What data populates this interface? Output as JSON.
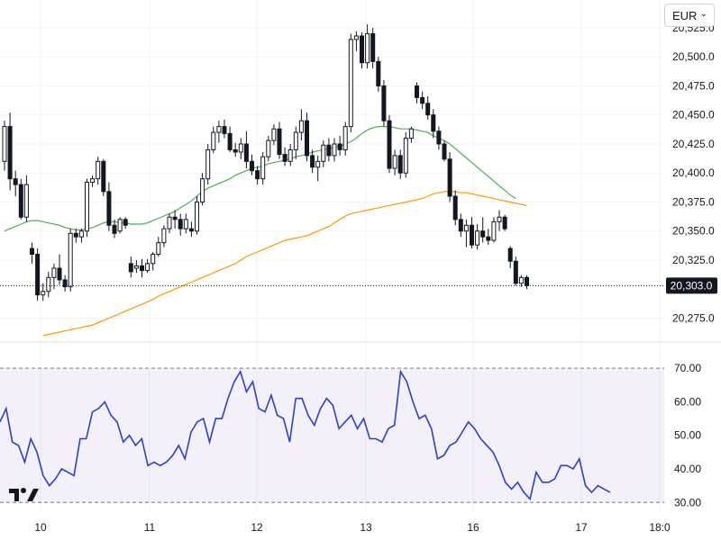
{
  "currency": {
    "selected": "EUR",
    "chevron": "chevron-down-icon"
  },
  "logo": {
    "icon": "tradingview-logo-icon"
  },
  "chart_data": {
    "type": "candlestick",
    "price_axis": {
      "ticks": [
        20525.0,
        20500.0,
        20475.0,
        20450.0,
        20425.0,
        20400.0,
        20375.0,
        20350.0,
        20325.0,
        20275.0
      ],
      "tick_labels": [
        "20,525.0",
        "20,500.0",
        "20,475.0",
        "20,450.0",
        "20,425.0",
        "20,400.0",
        "20,375.0",
        "20,350.0",
        "20,325.0",
        "20,275.0"
      ],
      "range": [
        20256,
        20549
      ]
    },
    "last_price": {
      "value": 20303.0,
      "label": "20,303.0",
      "color": "#131722"
    },
    "time_axis": {
      "labels": [
        "10",
        "11",
        "12",
        "13",
        "16",
        "17",
        "18:0"
      ]
    },
    "candles_ohlc": [
      [
        20410,
        20445,
        20402,
        20440
      ],
      [
        20440,
        20452,
        20385,
        20395
      ],
      [
        20395,
        20402,
        20380,
        20390
      ],
      [
        20390,
        20395,
        20360,
        20362
      ],
      [
        20362,
        20398,
        20358,
        20390
      ],
      [
        20335,
        20340,
        20322,
        20330
      ],
      [
        20330,
        20335,
        20290,
        20295
      ],
      [
        20295,
        20305,
        20290,
        20298
      ],
      [
        20298,
        20315,
        20293,
        20310
      ],
      [
        20310,
        20322,
        20300,
        20318
      ],
      [
        20318,
        20330,
        20304,
        20308
      ],
      [
        20308,
        20312,
        20298,
        20302
      ],
      [
        20302,
        20352,
        20298,
        20348
      ],
      [
        20348,
        20352,
        20340,
        20345
      ],
      [
        20345,
        20352,
        20340,
        20350
      ],
      [
        20350,
        20395,
        20345,
        20392
      ],
      [
        20392,
        20398,
        20388,
        20395
      ],
      [
        20395,
        20414,
        20390,
        20410
      ],
      [
        20410,
        20412,
        20380,
        20384
      ],
      [
        20384,
        20392,
        20350,
        20355
      ],
      [
        20355,
        20360,
        20344,
        20348
      ],
      [
        20350,
        20362,
        20348,
        20360
      ],
      [
        20360,
        20362,
        20352,
        20355
      ],
      [
        20322,
        20328,
        20310,
        20315
      ],
      [
        20318,
        20325,
        20314,
        20320
      ],
      [
        20320,
        20326,
        20310,
        20316
      ],
      [
        20316,
        20326,
        20314,
        20322
      ],
      [
        20322,
        20332,
        20316,
        20330
      ],
      [
        20330,
        20345,
        20328,
        20340
      ],
      [
        20340,
        20355,
        20336,
        20352
      ],
      [
        20352,
        20365,
        20348,
        20362
      ],
      [
        20362,
        20368,
        20352,
        20360
      ],
      [
        20360,
        20365,
        20346,
        20352
      ],
      [
        20352,
        20365,
        20348,
        20360
      ],
      [
        20352,
        20358,
        20345,
        20350
      ],
      [
        20350,
        20380,
        20347,
        20375
      ],
      [
        20375,
        20400,
        20372,
        20395
      ],
      [
        20395,
        20425,
        20390,
        20420
      ],
      [
        20420,
        20440,
        20417,
        20435
      ],
      [
        20435,
        20445,
        20426,
        20440
      ],
      [
        20440,
        20446,
        20430,
        20434
      ],
      [
        20434,
        20440,
        20418,
        20420
      ],
      [
        20420,
        20426,
        20414,
        20418
      ],
      [
        20418,
        20430,
        20412,
        20425
      ],
      [
        20425,
        20436,
        20404,
        20410
      ],
      [
        20410,
        20416,
        20398,
        20402
      ],
      [
        20402,
        20406,
        20390,
        20395
      ],
      [
        20395,
        20418,
        20390,
        20414
      ],
      [
        20414,
        20432,
        20410,
        20428
      ],
      [
        20428,
        20442,
        20424,
        20438
      ],
      [
        20438,
        20444,
        20412,
        20416
      ],
      [
        20416,
        20422,
        20406,
        20410
      ],
      [
        20410,
        20425,
        20406,
        20420
      ],
      [
        20420,
        20440,
        20412,
        20435
      ],
      [
        20435,
        20455,
        20428,
        20445
      ],
      [
        20445,
        20452,
        20410,
        20415
      ],
      [
        20415,
        20420,
        20400,
        20405
      ],
      [
        20405,
        20415,
        20393,
        20410
      ],
      [
        20410,
        20428,
        20405,
        20424
      ],
      [
        20424,
        20430,
        20410,
        20415
      ],
      [
        20415,
        20430,
        20410,
        20425
      ],
      [
        20425,
        20432,
        20415,
        20420
      ],
      [
        20420,
        20444,
        20415,
        20440
      ],
      [
        20440,
        20520,
        20435,
        20515
      ],
      [
        20515,
        20522,
        20505,
        20518
      ],
      [
        20518,
        20521,
        20490,
        20495
      ],
      [
        20495,
        20528,
        20490,
        20520
      ],
      [
        20520,
        20525,
        20490,
        20496
      ],
      [
        20496,
        20500,
        20470,
        20475
      ],
      [
        20475,
        20480,
        20440,
        20445
      ],
      [
        20445,
        20450,
        20400,
        20404
      ],
      [
        20404,
        20420,
        20398,
        20415
      ],
      [
        20415,
        20420,
        20395,
        20400
      ],
      [
        20400,
        20435,
        20396,
        20430
      ],
      [
        20430,
        20440,
        20426,
        20438
      ],
      [
        20475,
        20478,
        20460,
        20465
      ],
      [
        20465,
        20470,
        20455,
        20460
      ],
      [
        20460,
        20466,
        20446,
        20450
      ],
      [
        20450,
        20455,
        20430,
        20436
      ],
      [
        20436,
        20440,
        20420,
        20425
      ],
      [
        20425,
        20428,
        20410,
        20412
      ],
      [
        20412,
        20418,
        20375,
        20380
      ],
      [
        20380,
        20385,
        20355,
        20360
      ],
      [
        20360,
        20365,
        20345,
        20350
      ],
      [
        20350,
        20360,
        20336,
        20355
      ],
      [
        20355,
        20362,
        20335,
        20338
      ],
      [
        20338,
        20356,
        20334,
        20350
      ],
      [
        20350,
        20362,
        20340,
        20345
      ],
      [
        20345,
        20352,
        20338,
        20342
      ],
      [
        20342,
        20362,
        20340,
        20358
      ],
      [
        20358,
        20368,
        20350,
        20362
      ],
      [
        20362,
        20364,
        20350,
        20352
      ],
      [
        20335,
        20337,
        20318,
        20324
      ],
      [
        20324,
        20328,
        20303,
        20305
      ],
      [
        20305,
        20312,
        20302,
        20310
      ],
      [
        20310,
        20312,
        20300,
        20303
      ]
    ],
    "indicators": [
      {
        "name": "",
        "color": "#4caf50",
        "values": [
          20350,
          20352,
          20354,
          20356,
          20358,
          20359,
          20359,
          20358,
          20357,
          20356,
          20355,
          20353,
          20352,
          20351,
          20351,
          20352,
          20353,
          20355,
          20357,
          20358,
          20358,
          20357,
          20357,
          20356,
          20356,
          20356,
          20357,
          20359,
          20361,
          20363,
          20365,
          20367,
          20370,
          20373,
          20376,
          20380,
          20384,
          20387,
          20389,
          20391,
          20393,
          20395,
          20398,
          20400,
          20402,
          20404,
          20405,
          20406,
          20408,
          20409,
          20410,
          20411,
          20412,
          20414,
          20415,
          20416,
          20418,
          20419,
          20420,
          20421,
          20422,
          20423,
          20425,
          20427,
          20430,
          20434,
          20437,
          20439,
          20440,
          20440,
          20440,
          20439,
          20438,
          20438,
          20438,
          20437,
          20436,
          20435,
          20432,
          20430,
          20428,
          20425,
          20421,
          20417,
          20413,
          20409,
          20405,
          20401,
          20397,
          20393,
          20389,
          20385,
          20381,
          20378
        ]
      },
      {
        "name": "",
        "color": "#ff9800",
        "values": [
          20260,
          20261,
          20262,
          20263,
          20264,
          20265,
          20266,
          20267,
          20268,
          20269,
          20271,
          20273,
          20275,
          20277,
          20279,
          20281,
          20283,
          20285,
          20287,
          20289,
          20291,
          20294,
          20296,
          20298,
          20300,
          20302,
          20304,
          20306,
          20308,
          20310,
          20312,
          20314,
          20316,
          20318,
          20320,
          20322,
          20325,
          20328,
          20330,
          20332,
          20334,
          20336,
          20338,
          20340,
          20342,
          20343,
          20344,
          20345,
          20346,
          20348,
          20350,
          20352,
          20354,
          20357,
          20360,
          20363,
          20365,
          20366,
          20367,
          20368,
          20369,
          20370,
          20371,
          20372,
          20373,
          20374,
          20375,
          20376,
          20377,
          20378,
          20380,
          20382,
          20383,
          20384,
          20384,
          20384,
          20383,
          20383,
          20382,
          20381,
          20380,
          20379,
          20378,
          20377,
          20376,
          20375,
          20374,
          20373,
          20372
        ]
      }
    ],
    "rsi": {
      "axis_ticks": [
        70.0,
        60.0,
        50.0,
        40.0,
        30.0
      ],
      "tick_labels": [
        "70.00",
        "60.00",
        "50.00",
        "40.00",
        "30.00"
      ],
      "range": [
        29,
        73
      ],
      "band": [
        30,
        70
      ],
      "color": "#2942c9",
      "values": [
        54,
        58,
        48,
        47,
        42,
        49,
        45,
        38,
        35,
        37,
        40,
        39,
        38,
        49,
        49,
        57,
        58,
        60,
        56,
        54,
        48,
        50,
        47,
        49,
        41,
        42,
        41,
        42,
        44,
        47,
        43,
        51,
        54,
        55,
        48,
        55,
        55,
        61,
        66,
        69,
        63,
        66,
        58,
        57,
        62,
        56,
        55,
        48,
        61,
        61,
        56,
        53,
        58,
        61,
        59,
        52,
        54,
        56,
        52,
        55,
        49,
        49,
        48,
        52,
        53,
        69,
        66,
        60,
        55,
        56,
        52,
        43,
        44,
        47,
        48,
        51,
        54,
        52,
        49,
        47,
        45,
        41,
        36,
        34,
        36,
        33,
        31,
        39,
        36,
        36,
        37,
        41,
        41,
        40,
        43,
        35,
        33,
        35,
        34,
        33
      ]
    }
  }
}
